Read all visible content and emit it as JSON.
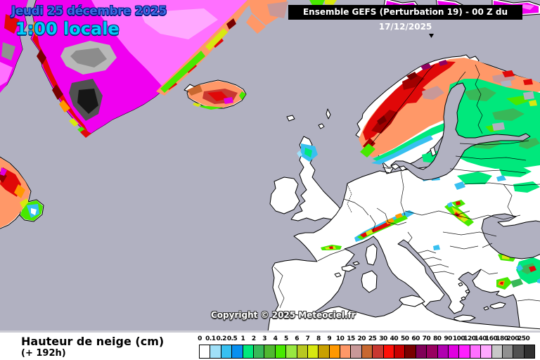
{
  "header": {
    "date_line1": "Jeudi 25 décembre 2025",
    "date_line2": "1:00 locale",
    "model_banner": "Ensemble GEFS  (Perturbation 19)  -  00 Z du 17/12/2025"
  },
  "map": {
    "copyright": "Copyright © 2025 Meteociel.fr",
    "region": "Europe / North Atlantic",
    "parameter": "snow depth"
  },
  "footer": {
    "title": "Hauteur de neige (cm)",
    "subtitle": "(+ 192h)"
  },
  "legend": {
    "unit": "cm",
    "values": [
      "0",
      "0.1",
      "0.2",
      "0.5",
      "1",
      "2",
      "3",
      "4",
      "5",
      "6",
      "7",
      "8",
      "9",
      "10",
      "15",
      "20",
      "25",
      "30",
      "40",
      "50",
      "60",
      "70",
      "80",
      "90",
      "100",
      "120",
      "140",
      "160",
      "180",
      "200",
      "250"
    ],
    "colors": [
      "#ffffff",
      "#a0e0f8",
      "#38c0f0",
      "#0890f0",
      "#00e87c",
      "#38b858",
      "#50b830",
      "#48e800",
      "#98e840",
      "#b8c820",
      "#d8e810",
      "#c8a000",
      "#ff9800",
      "#ff9868",
      "#c89898",
      "#c86830",
      "#c83830",
      "#ff1008",
      "#c80000",
      "#780000",
      "#800058",
      "#980060",
      "#b000b0",
      "#e000e0",
      "#ff20ff",
      "#ff70ff",
      "#ffa8ff",
      "#c8c8c8",
      "#909090",
      "#505050",
      "#303030"
    ]
  },
  "colors": {
    "sea": "#b1b1c1",
    "land": "#ffffff",
    "coast": "#000000",
    "date": "#3a6ae0",
    "date-outline": "#001a80",
    "time": "#00ccf8",
    "time-outline": "#004080",
    "header-bg": "#000000",
    "header-text": "#ffffff",
    "footer-bg": "#ffffff",
    "footer-text": "#000000",
    "copyright": "#ffffff"
  }
}
